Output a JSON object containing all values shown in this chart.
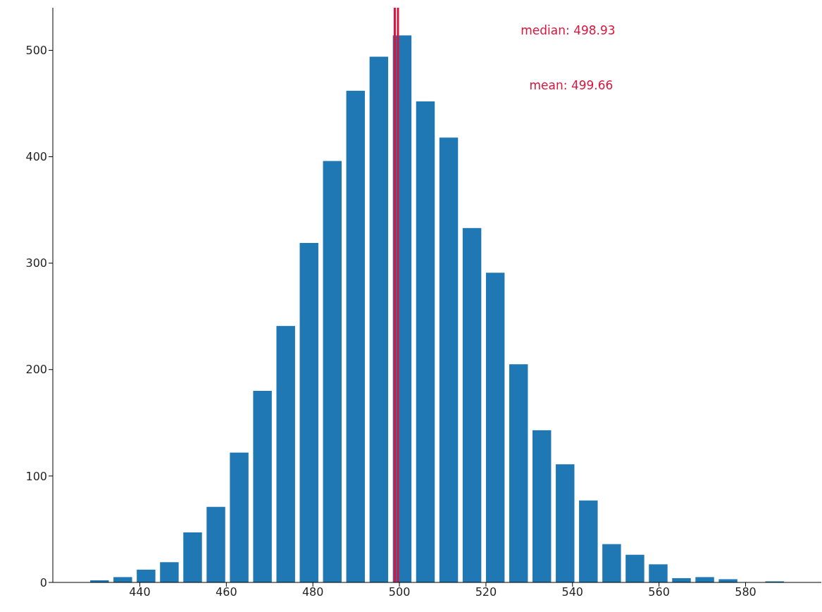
{
  "chart_data": {
    "type": "histogram",
    "bins": [
      428.0,
      433.38,
      438.76,
      444.14,
      449.52,
      454.9,
      460.28,
      465.66,
      471.04,
      476.42,
      481.8,
      487.18,
      492.56,
      497.94,
      503.32,
      508.7,
      514.08,
      519.46,
      524.84,
      530.22,
      535.6,
      540.98,
      546.36,
      551.74,
      557.12,
      562.5,
      567.88,
      573.26,
      578.64,
      584.02,
      589.4
    ],
    "values": [
      2,
      5,
      12,
      19,
      47,
      71,
      122,
      180,
      241,
      319,
      396,
      462,
      494,
      514,
      452,
      418,
      333,
      291,
      205,
      143,
      111,
      77,
      36,
      26,
      17,
      4,
      5,
      3,
      0,
      1
    ],
    "color": "#1f77b4",
    "xlim": [
      419.9,
      597.5
    ],
    "xticks": [
      440,
      460,
      480,
      500,
      520,
      540,
      560,
      580
    ],
    "ylim": [
      0,
      540
    ],
    "yticks": [
      0,
      100,
      200,
      300,
      400,
      500
    ],
    "ref_lines": [
      {
        "axis": "x",
        "value": 498.93,
        "label": "median: 498.93",
        "color": "#dc143c"
      },
      {
        "axis": "x",
        "value": 499.66,
        "label": "mean: 499.66",
        "color": "#dc143c"
      }
    ]
  }
}
